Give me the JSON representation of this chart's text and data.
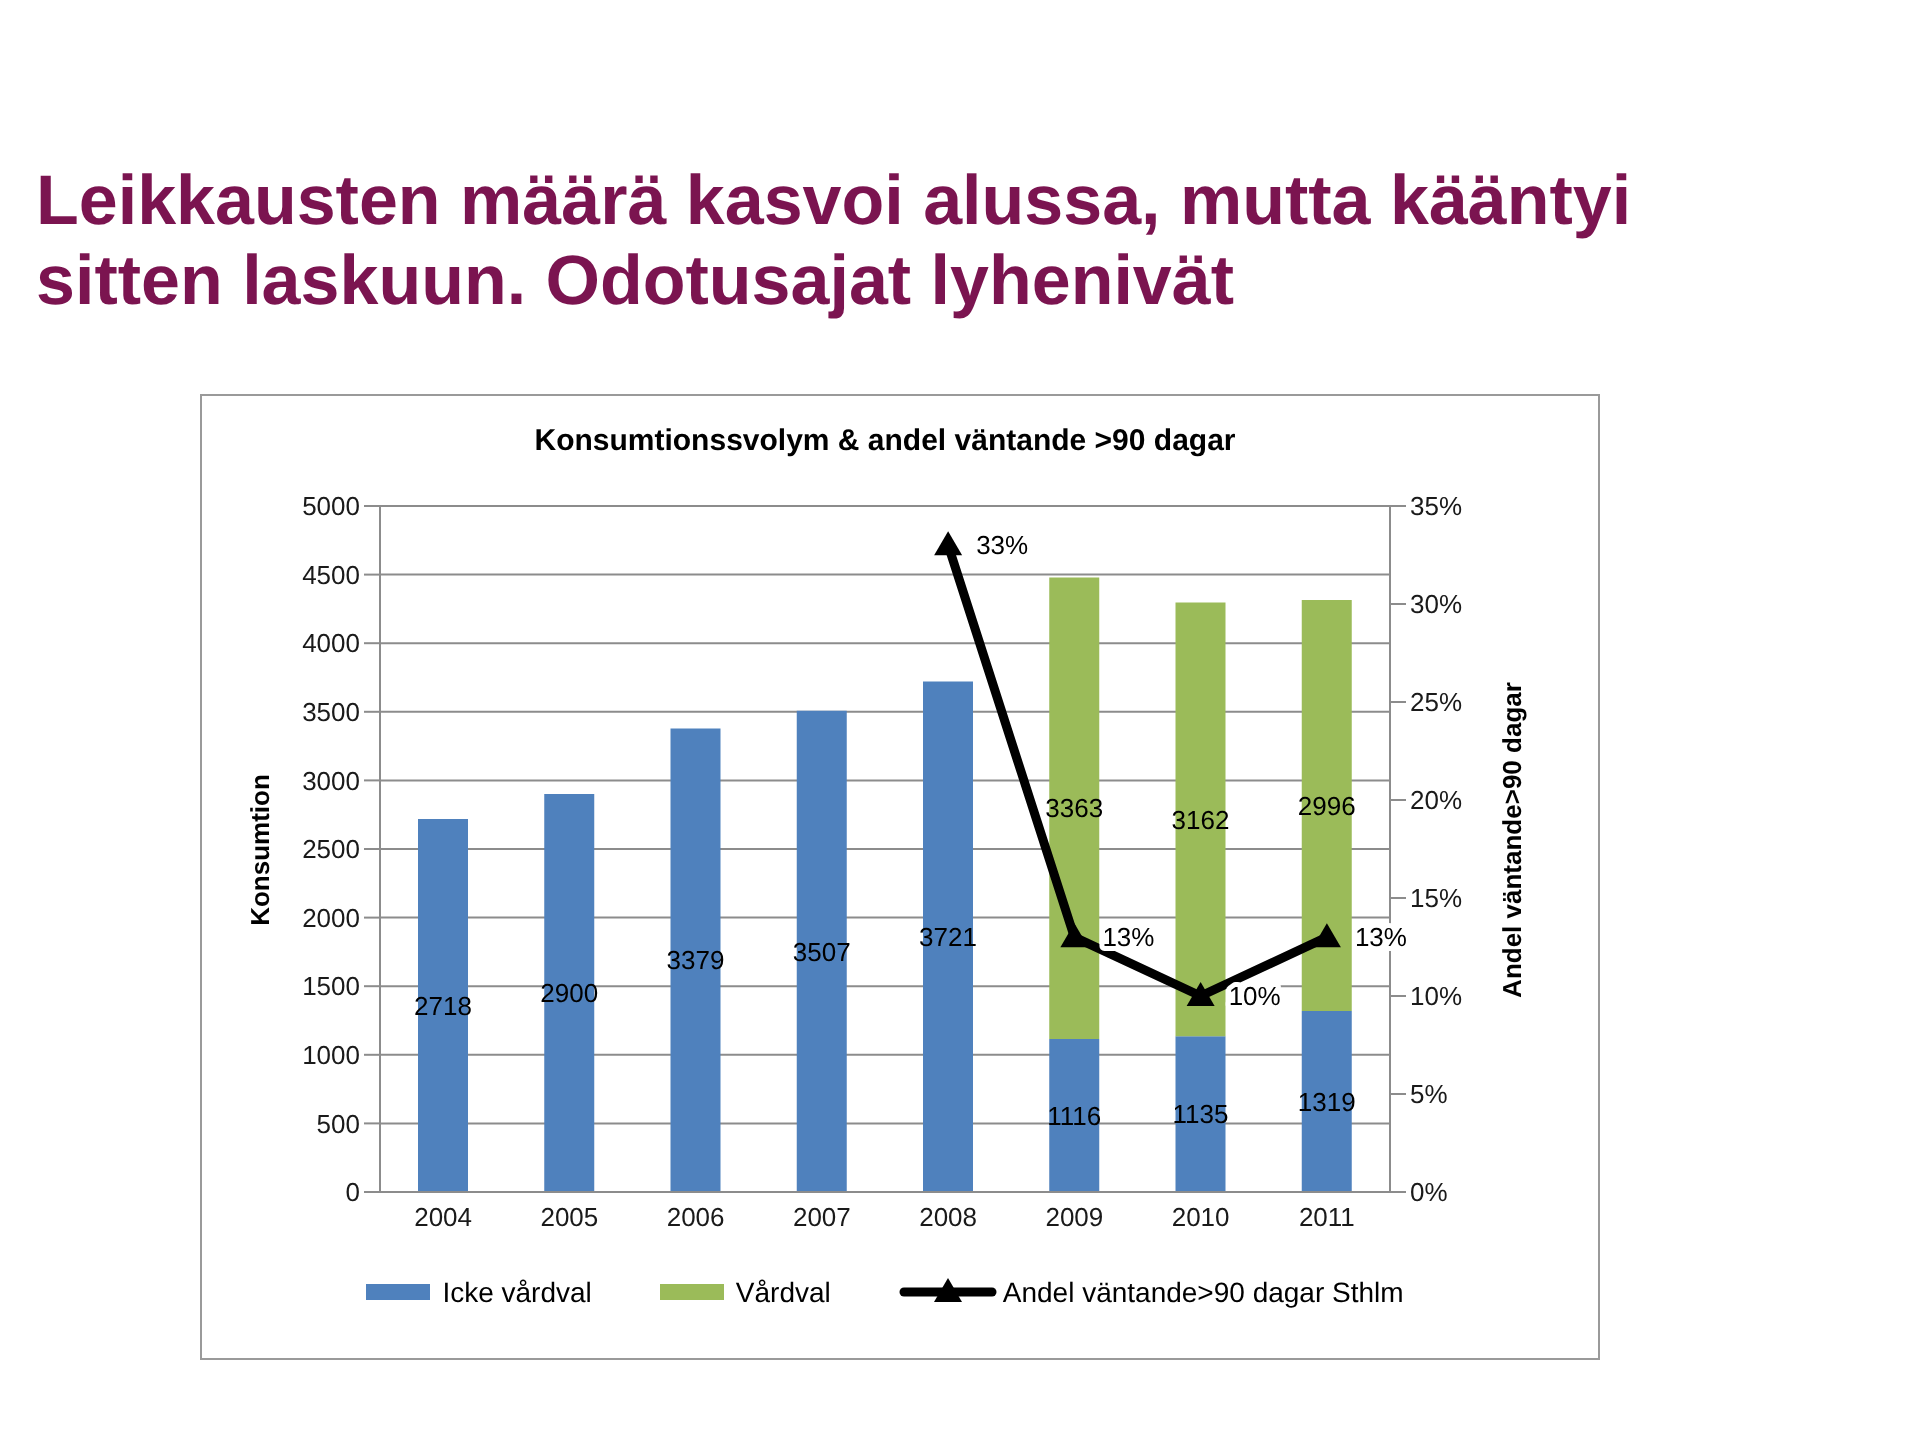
{
  "chart_data": {
    "type": "bar",
    "title": "Leikkausten määrä kasvoi alussa, mutta kääntyi sitten laskuun. Odotusajat lyhenivät",
    "subtitle": "Konsumtionssvolym & andel väntande >90 dagar",
    "ylabel": "Konsumtion",
    "y2label": "Andel väntande>90 dagar",
    "categories": [
      "2004",
      "2005",
      "2006",
      "2007",
      "2008",
      "2009",
      "2010",
      "2011"
    ],
    "stacked": true,
    "series": [
      {
        "name": "Icke vårdval",
        "color": "#4f81bd",
        "values": [
          2718,
          2900,
          3379,
          3507,
          3721,
          1116,
          1135,
          1319
        ],
        "value_labels": [
          "2718",
          "2900",
          "3379",
          "3507",
          "3721",
          "1116",
          "1135",
          "1319"
        ]
      },
      {
        "name": "Vårdval",
        "color": "#9bbb59",
        "values": [
          null,
          null,
          null,
          null,
          null,
          3363,
          3162,
          2996
        ],
        "value_labels": [
          null,
          null,
          null,
          null,
          null,
          "3363",
          "3162",
          "2996"
        ]
      },
      {
        "name": "Andel väntande>90 dagar Sthlm",
        "type": "line",
        "axis": "y2",
        "color": "#000000",
        "values": [
          null,
          null,
          null,
          null,
          33,
          13,
          10,
          13
        ],
        "value_labels": [
          null,
          null,
          null,
          null,
          "33%",
          "13%",
          "10%",
          "13%"
        ]
      }
    ],
    "ylim": [
      0,
      5000
    ],
    "yticks": [
      0,
      500,
      1000,
      1500,
      2000,
      2500,
      3000,
      3500,
      4000,
      4500,
      5000
    ],
    "y2lim": [
      0,
      35
    ],
    "y2ticks": [
      {
        "value": 0,
        "label": "0%"
      },
      {
        "value": 5,
        "label": "5%"
      },
      {
        "value": 10,
        "label": "10%"
      },
      {
        "value": 15,
        "label": "15%"
      },
      {
        "value": 20,
        "label": "20%"
      },
      {
        "value": 25,
        "label": "25%"
      },
      {
        "value": 30,
        "label": "30%"
      },
      {
        "value": 35,
        "label": "35%"
      }
    ],
    "grid": "y",
    "legend": "bottom",
    "marker": "triangle"
  }
}
